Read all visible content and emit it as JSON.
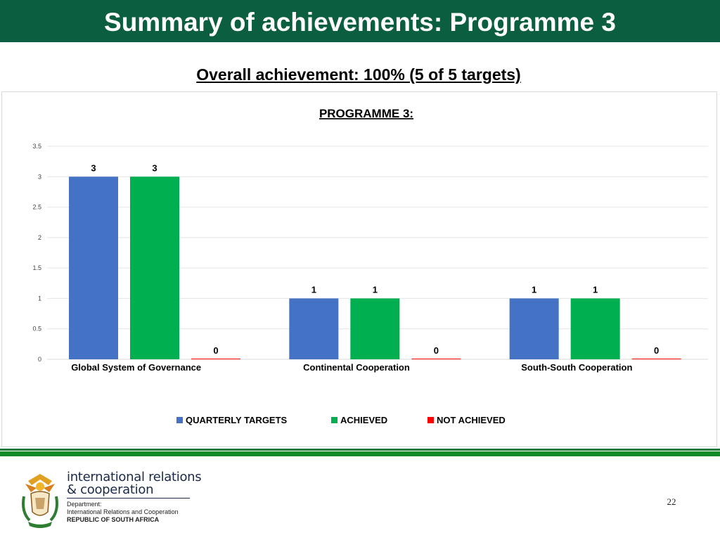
{
  "header": {
    "title": "Summary of achievements: Programme 3"
  },
  "subtitle": "Overall achievement: 100% (5 of 5 targets)",
  "chart_data": {
    "type": "bar",
    "title": "PROGRAMME 3:",
    "categories": [
      "Global System of Governance",
      "Continental Cooperation",
      "South-South Cooperation"
    ],
    "series": [
      {
        "name": "QUARTERLY TARGETS",
        "values": [
          3,
          1,
          1
        ],
        "color": "#4472c4"
      },
      {
        "name": "ACHIEVED",
        "values": [
          3,
          1,
          1
        ],
        "color": "#00b050"
      },
      {
        "name": "NOT ACHIEVED",
        "values": [
          0,
          0,
          0
        ],
        "color": "#ff0000"
      }
    ],
    "ylim": [
      0,
      3.5
    ],
    "yticks": [
      "0",
      "0.5",
      "1",
      "1.5",
      "2",
      "2.5",
      "3",
      "3.5"
    ],
    "data_labels": true,
    "grid": true,
    "legend": "bottom"
  },
  "footer": {
    "brand_line1": "international relations",
    "brand_line2": "& cooperation",
    "dept_line1": "Department:",
    "dept_line2": "International Relations and Cooperation",
    "dept_line3": "REPUBLIC OF SOUTH AFRICA",
    "page_number": "22"
  }
}
